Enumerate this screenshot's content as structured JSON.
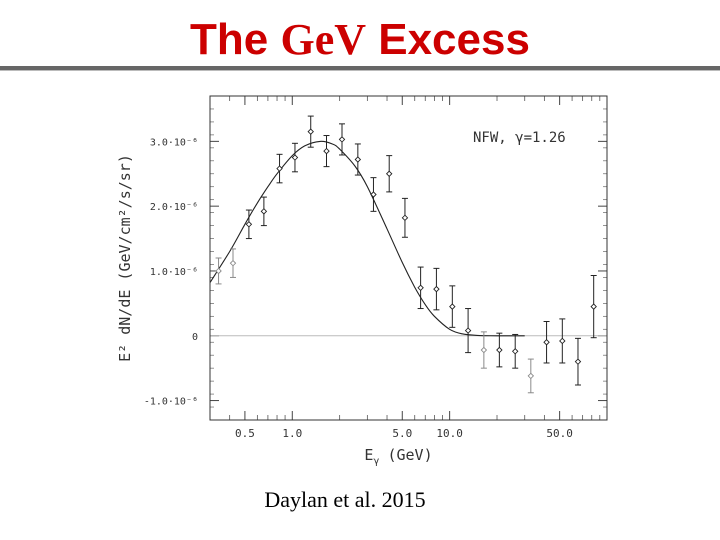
{
  "slide": {
    "title_a": "The ",
    "title_b": "GeV",
    "title_c": " Excess",
    "caption": "Daylan et al. 2015"
  },
  "colors": {
    "title": "#cc0000",
    "rule": "#666666",
    "ink": "#222222"
  },
  "chart_data": {
    "type": "scatter",
    "title": "",
    "annotation": "NFW, γ=1.26",
    "xlabel_main": "E",
    "xlabel_sub": "γ",
    "xlabel_rest": "(GeV)",
    "ylabel": "E² dN/dE (GeV/cm²/s/sr)",
    "x_scale": "log",
    "xlim": [
      0.3,
      100
    ],
    "ylim": [
      -1.3e-06,
      3.7e-06
    ],
    "x_ticks": [
      {
        "value": 0.5,
        "label": "0.5"
      },
      {
        "value": 1.0,
        "label": "1.0"
      },
      {
        "value": 5.0,
        "label": "5.0"
      },
      {
        "value": 10.0,
        "label": "10.0"
      },
      {
        "value": 50.0,
        "label": "50.0"
      }
    ],
    "x_minor_ticks": [
      0.4,
      0.6,
      0.7,
      0.8,
      0.9,
      2,
      3,
      4,
      6,
      7,
      8,
      9,
      20,
      30,
      40,
      60,
      70,
      80,
      90
    ],
    "y_ticks": [
      {
        "value": -1e-06,
        "label": "-1.0·10⁻⁶"
      },
      {
        "value": 0,
        "label": "0"
      },
      {
        "value": 1e-06,
        "label": "1.0·10⁻⁶"
      },
      {
        "value": 2e-06,
        "label": "2.0·10⁻⁶"
      },
      {
        "value": 3e-06,
        "label": "3.0·10⁻⁶"
      }
    ],
    "zero_line": true,
    "series": [
      {
        "kind": "points",
        "points": [
          {
            "x": 0.34,
            "y": 1e-06,
            "err": 2e-07,
            "light": true
          },
          {
            "x": 0.42,
            "y": 1.12e-06,
            "err": 2.2e-07,
            "light": true
          },
          {
            "x": 0.53,
            "y": 1.72e-06,
            "err": 2.2e-07
          },
          {
            "x": 0.66,
            "y": 1.92e-06,
            "err": 2.2e-07
          },
          {
            "x": 0.83,
            "y": 2.58e-06,
            "err": 2.2e-07
          },
          {
            "x": 1.04,
            "y": 2.75e-06,
            "err": 2.2e-07
          },
          {
            "x": 1.31,
            "y": 3.15e-06,
            "err": 2.4e-07
          },
          {
            "x": 1.65,
            "y": 2.85e-06,
            "err": 2.4e-07
          },
          {
            "x": 2.07,
            "y": 3.03e-06,
            "err": 2.4e-07
          },
          {
            "x": 2.61,
            "y": 2.72e-06,
            "err": 2.4e-07
          },
          {
            "x": 3.28,
            "y": 2.18e-06,
            "err": 2.6e-07
          },
          {
            "x": 4.13,
            "y": 2.5e-06,
            "err": 2.8e-07
          },
          {
            "x": 5.2,
            "y": 1.82e-06,
            "err": 3e-07
          },
          {
            "x": 6.54,
            "y": 7.4e-07,
            "err": 3.2e-07
          },
          {
            "x": 8.24,
            "y": 7.2e-07,
            "err": 3.2e-07
          },
          {
            "x": 10.4,
            "y": 4.5e-07,
            "err": 3.2e-07
          },
          {
            "x": 13.1,
            "y": 8e-08,
            "err": 3.4e-07
          },
          {
            "x": 16.5,
            "y": -2.2e-07,
            "err": 2.8e-07,
            "light": true
          },
          {
            "x": 20.7,
            "y": -2.2e-07,
            "err": 2.6e-07
          },
          {
            "x": 26.1,
            "y": -2.4e-07,
            "err": 2.6e-07
          },
          {
            "x": 32.8,
            "y": -6.2e-07,
            "err": 2.6e-07,
            "light": true
          },
          {
            "x": 41.3,
            "y": -1e-07,
            "err": 3.2e-07
          },
          {
            "x": 52.0,
            "y": -8e-08,
            "err": 3.4e-07
          },
          {
            "x": 65.4,
            "y": -4e-07,
            "err": 3.6e-07
          },
          {
            "x": 82.3,
            "y": 4.5e-07,
            "err": 4.8e-07
          }
        ]
      },
      {
        "kind": "curve",
        "x": [
          0.3,
          0.4,
          0.5,
          0.6,
          0.7,
          0.8,
          1.0,
          1.2,
          1.5,
          1.8,
          2.0,
          2.5,
          3.0,
          4.0,
          5.0,
          6.0,
          7.0,
          8.0,
          10.0,
          12.0,
          15.0,
          20.0,
          30.0
        ],
        "y": [
          8.2e-07,
          1.3e-06,
          1.72e-06,
          2.05e-06,
          2.3e-06,
          2.5e-06,
          2.78e-06,
          2.93e-06,
          3e-06,
          2.96e-06,
          2.88e-06,
          2.62e-06,
          2.3e-06,
          1.65e-06,
          1.13e-06,
          7.5e-07,
          4.8e-07,
          3e-07,
          1e-07,
          3e-08,
          5e-09,
          0.0,
          0.0
        ]
      }
    ]
  }
}
